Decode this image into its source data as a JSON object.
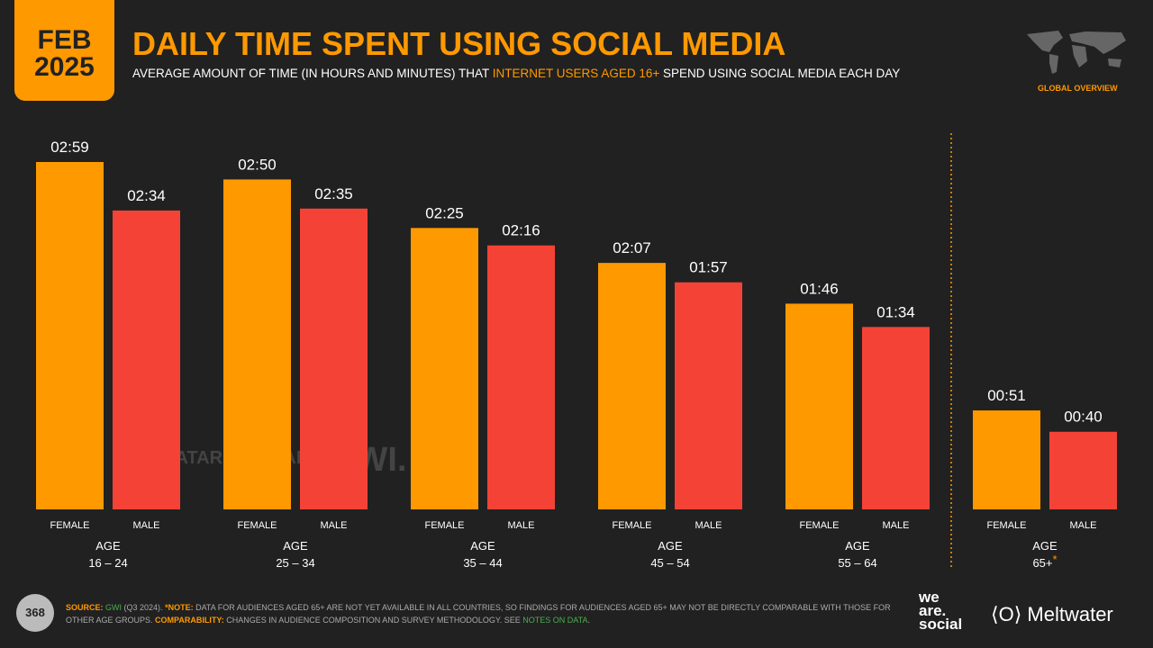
{
  "header": {
    "month": "FEB",
    "year": "2025",
    "title": "DAILY TIME SPENT USING SOCIAL MEDIA",
    "subtitle_pre": "AVERAGE AMOUNT OF TIME (IN HOURS AND MINUTES) THAT ",
    "subtitle_hl": "INTERNET USERS AGED 16+",
    "subtitle_post": " SPEND USING SOCIAL MEDIA EACH DAY",
    "badge": "GLOBAL OVERVIEW"
  },
  "chart_data": {
    "type": "bar",
    "title": "DAILY TIME SPENT USING SOCIAL MEDIA",
    "unit": "minutes",
    "categories": [
      {
        "line1": "AGE",
        "line2": "16 – 24"
      },
      {
        "line1": "AGE",
        "line2": "25 – 34"
      },
      {
        "line1": "AGE",
        "line2": "35 – 44"
      },
      {
        "line1": "AGE",
        "line2": "45 – 54"
      },
      {
        "line1": "AGE",
        "line2": "55 – 64"
      },
      {
        "line1": "AGE",
        "line2": "65+",
        "asterisk": "*"
      }
    ],
    "series": [
      {
        "name": "FEMALE",
        "color": "#ff9900",
        "values": [
          179,
          170,
          145,
          127,
          106,
          51
        ],
        "labels": [
          "02:59",
          "02:50",
          "02:25",
          "02:07",
          "01:46",
          "00:51"
        ]
      },
      {
        "name": "MALE",
        "color": "#f44336",
        "values": [
          154,
          155,
          136,
          117,
          94,
          40
        ],
        "labels": [
          "02:34",
          "02:35",
          "02:16",
          "01:57",
          "01:34",
          "00:40"
        ]
      }
    ],
    "ylim": [
      0,
      180
    ]
  },
  "watermarks": {
    "dr": "DATAREPORTAL",
    "gwi": "GWI."
  },
  "footer": {
    "page": "368",
    "source_label": "SOURCE:",
    "source": "GWI",
    "source_rest": " (Q3 2024). ",
    "note_label": "*NOTE:",
    "note": " DATA FOR AUDIENCES AGED 65+ ARE NOT YET AVAILABLE IN ALL COUNTRIES, SO FINDINGS FOR AUDIENCES AGED 65+ MAY NOT BE DIRECTLY COMPARABLE WITH THOSE FOR OTHER AGE GROUPS. ",
    "comp_label": "COMPARABILITY:",
    "comp": " CHANGES IN AUDIENCE COMPOSITION AND SURVEY METHODOLOGY. SEE ",
    "link": "NOTES ON DATA",
    "end": "."
  },
  "logos": {
    "was": "we are. social",
    "meltwater": "Meltwater"
  }
}
